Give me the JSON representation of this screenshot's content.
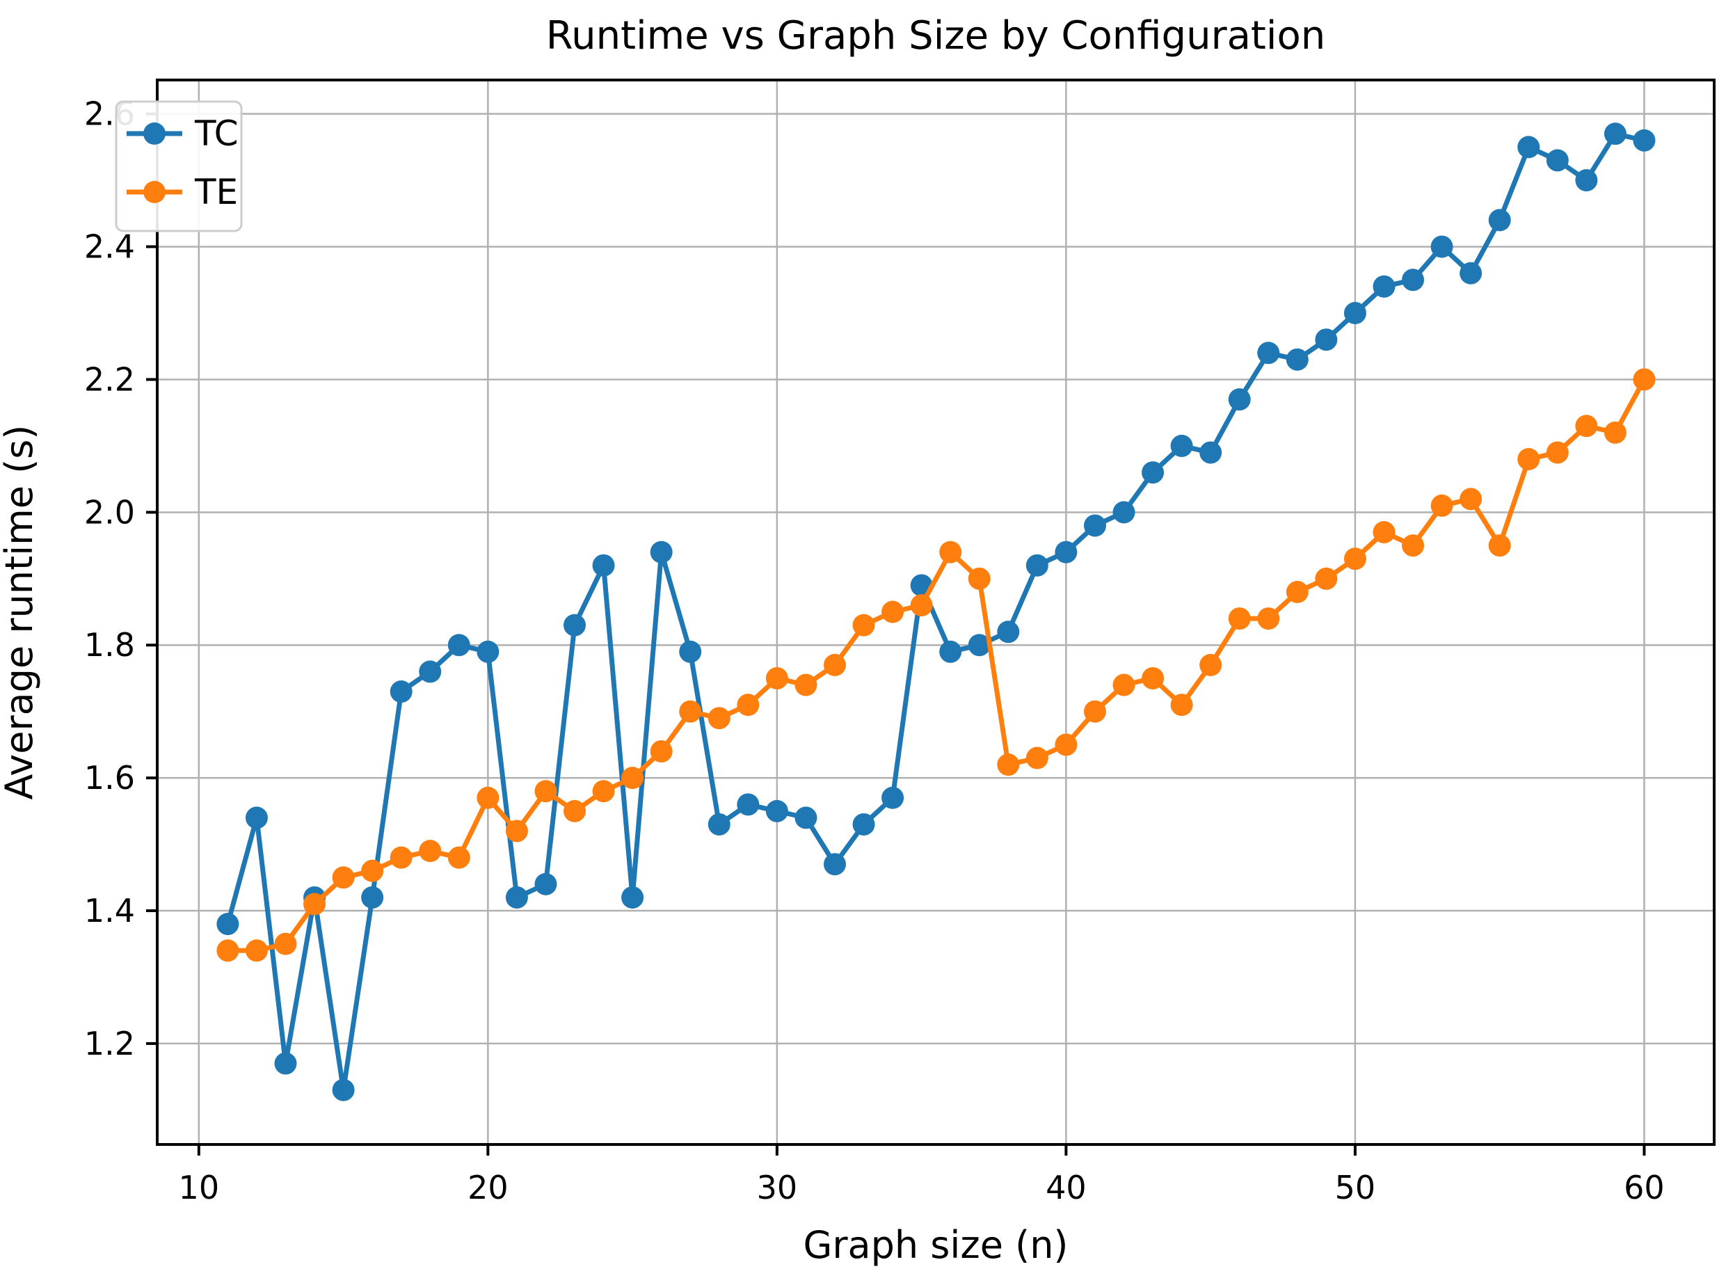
{
  "figure": {
    "title": "Runtime vs Graph Size by Configuration",
    "background_color": "#ffffff"
  },
  "legend": {
    "position": "upper left",
    "entries": [
      {
        "label": "TC",
        "color": "#1f77b4"
      },
      {
        "label": "TE",
        "color": "#ff7f0e"
      }
    ]
  },
  "colors": {
    "tc_blue": "#1f77b4",
    "te_orange": "#ff7f0e",
    "grid": "#b0b0b0",
    "spine": "#000000",
    "legend_edge": "#cccccc",
    "text": "#000000"
  },
  "chart_data": {
    "type": "line",
    "title": "Runtime vs Graph Size by Configuration",
    "xlabel": "Graph size (n)",
    "ylabel": "Average runtime (s)",
    "grid": true,
    "legend_position": "upper left",
    "xlim": [
      8.56,
      62.42
    ],
    "ylim": [
      1.048,
      2.651
    ],
    "xticks": [
      10,
      20,
      30,
      40,
      50,
      60
    ],
    "yticks": [
      1.2,
      1.4,
      1.6,
      1.8,
      2.0,
      2.2,
      2.4,
      2.6
    ],
    "x": [
      11,
      12,
      13,
      14,
      15,
      16,
      17,
      18,
      19,
      20,
      21,
      22,
      23,
      24,
      25,
      26,
      27,
      28,
      29,
      30,
      31,
      32,
      33,
      34,
      35,
      36,
      37,
      38,
      39,
      40,
      41,
      42,
      43,
      44,
      45,
      46,
      47,
      48,
      49,
      50,
      51,
      52,
      53,
      54,
      55,
      56,
      57,
      58,
      59,
      60
    ],
    "series": [
      {
        "name": "TC",
        "color": "#1f77b4",
        "values": [
          1.38,
          1.54,
          1.17,
          1.42,
          1.13,
          1.42,
          1.73,
          1.76,
          1.8,
          1.79,
          1.42,
          1.44,
          1.83,
          1.92,
          1.42,
          1.94,
          1.79,
          1.53,
          1.56,
          1.55,
          1.54,
          1.47,
          1.53,
          1.57,
          1.89,
          1.79,
          1.8,
          1.82,
          1.92,
          1.94,
          1.98,
          2.0,
          2.06,
          2.1,
          2.09,
          2.17,
          2.24,
          2.23,
          2.26,
          2.3,
          2.34,
          2.35,
          2.4,
          2.36,
          2.44,
          2.55,
          2.53,
          2.5,
          2.57,
          2.56
        ]
      },
      {
        "name": "TE",
        "color": "#ff7f0e",
        "values": [
          1.34,
          1.34,
          1.35,
          1.41,
          1.45,
          1.46,
          1.48,
          1.49,
          1.48,
          1.57,
          1.52,
          1.58,
          1.55,
          1.58,
          1.6,
          1.64,
          1.7,
          1.69,
          1.71,
          1.75,
          1.74,
          1.77,
          1.83,
          1.85,
          1.86,
          1.94,
          1.9,
          1.62,
          1.63,
          1.65,
          1.7,
          1.74,
          1.75,
          1.71,
          1.77,
          1.84,
          1.84,
          1.88,
          1.9,
          1.93,
          1.97,
          1.95,
          2.01,
          2.02,
          1.95,
          2.08,
          2.09,
          2.13,
          2.12,
          2.2
        ]
      }
    ]
  }
}
